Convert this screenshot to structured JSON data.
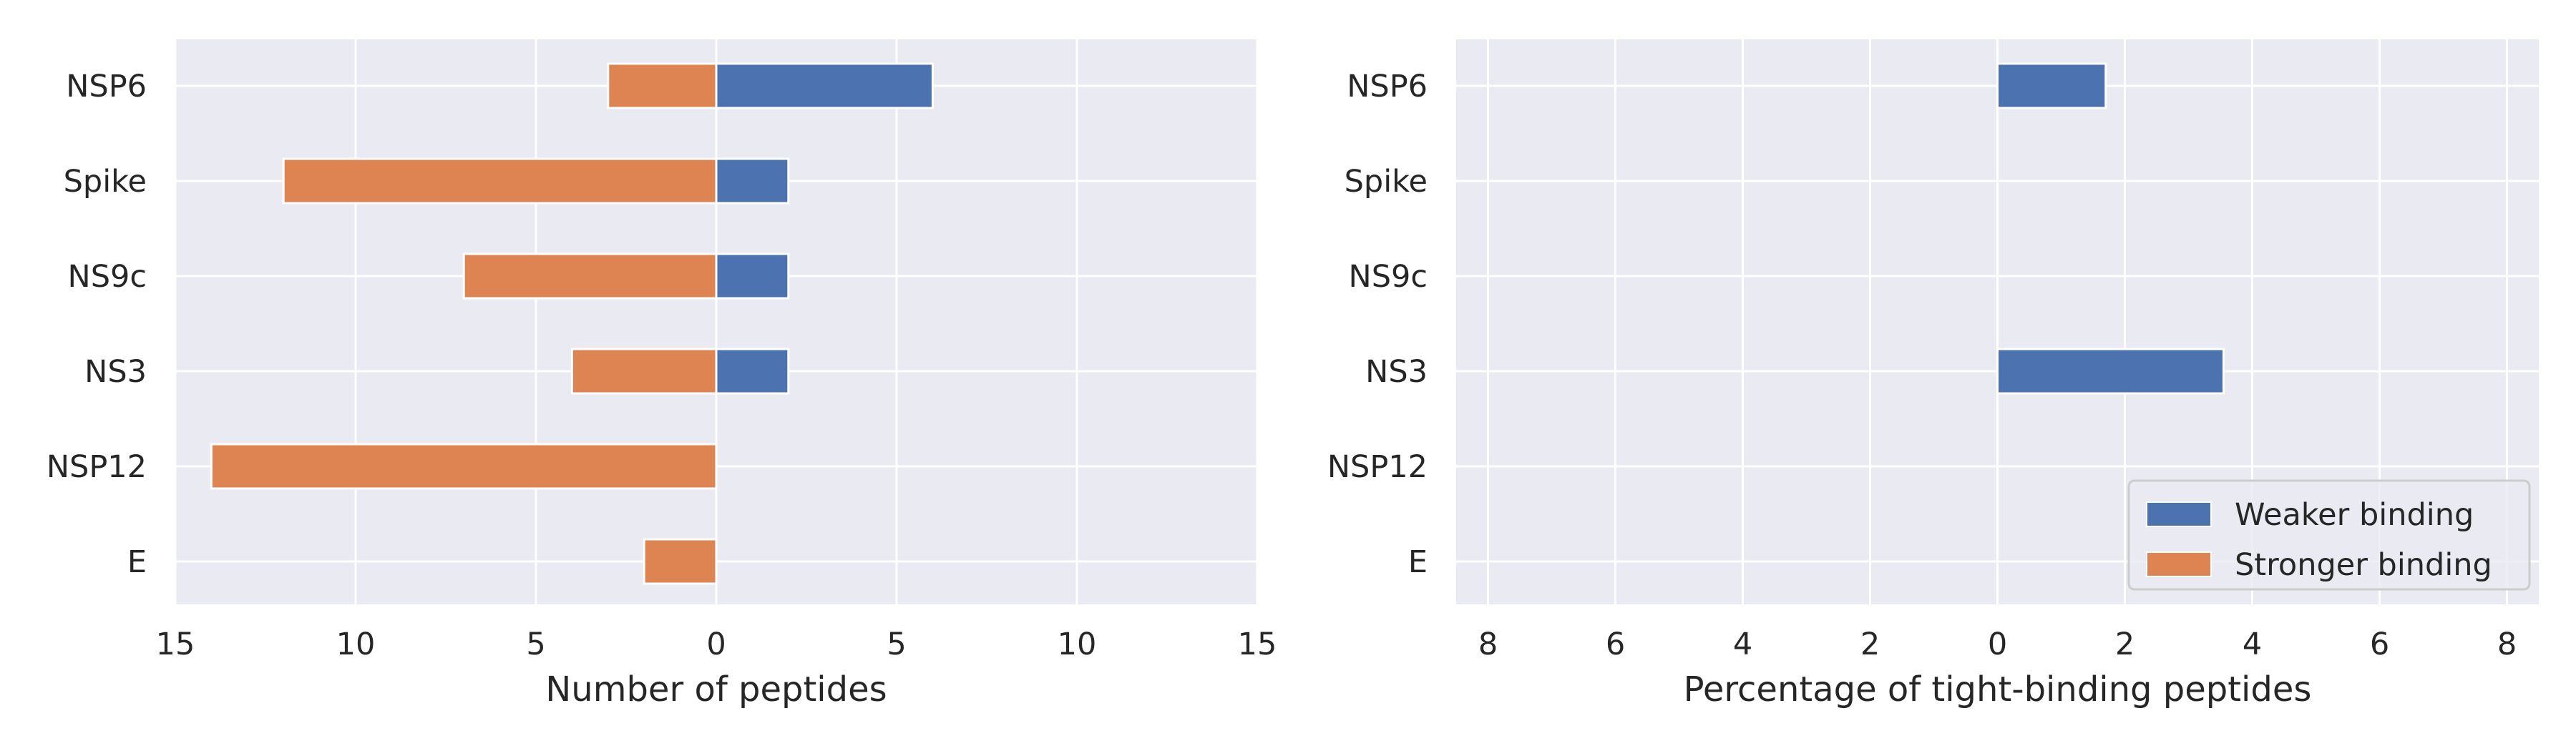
{
  "colors": {
    "weaker": "#4c72b0",
    "stronger": "#dd8452",
    "plot_bg": "#eaeaf2",
    "grid": "#ffffff"
  },
  "chart_data": [
    {
      "type": "bar",
      "orientation": "horizontal",
      "categories": [
        "NSP6",
        "Spike",
        "NS9c",
        "NS3",
        "NSP12",
        "E"
      ],
      "series": [
        {
          "name": "Weaker binding",
          "values": [
            6,
            2,
            2,
            2,
            0,
            0
          ]
        },
        {
          "name": "Stronger binding",
          "values": [
            -3,
            -12,
            -7,
            -4,
            -14,
            -2
          ]
        }
      ],
      "xlabel": "Number of peptides",
      "xlim": [
        -15,
        15
      ],
      "xticks": [
        -15,
        -10,
        -5,
        0,
        5,
        10,
        15
      ],
      "xtick_labels": [
        "15",
        "10",
        "5",
        "0",
        "5",
        "10",
        "15"
      ],
      "grid": true,
      "legend": false
    },
    {
      "type": "bar",
      "orientation": "horizontal",
      "categories": [
        "NSP6",
        "Spike",
        "NS9c",
        "NS3",
        "NSP12",
        "E"
      ],
      "series": [
        {
          "name": "Weaker binding",
          "values": [
            1.7,
            0,
            0,
            3.55,
            0,
            0
          ]
        },
        {
          "name": "Stronger binding",
          "values": [
            0,
            0,
            0,
            0,
            0,
            0
          ]
        }
      ],
      "xlabel": "Percentage of tight-binding peptides",
      "xlim": [
        -8.5,
        8.5
      ],
      "xticks": [
        -8,
        -6,
        -4,
        -2,
        0,
        2,
        4,
        6,
        8
      ],
      "xtick_labels": [
        "8",
        "6",
        "4",
        "2",
        "0",
        "2",
        "4",
        "6",
        "8"
      ],
      "grid": true,
      "legend": "lower right"
    }
  ]
}
